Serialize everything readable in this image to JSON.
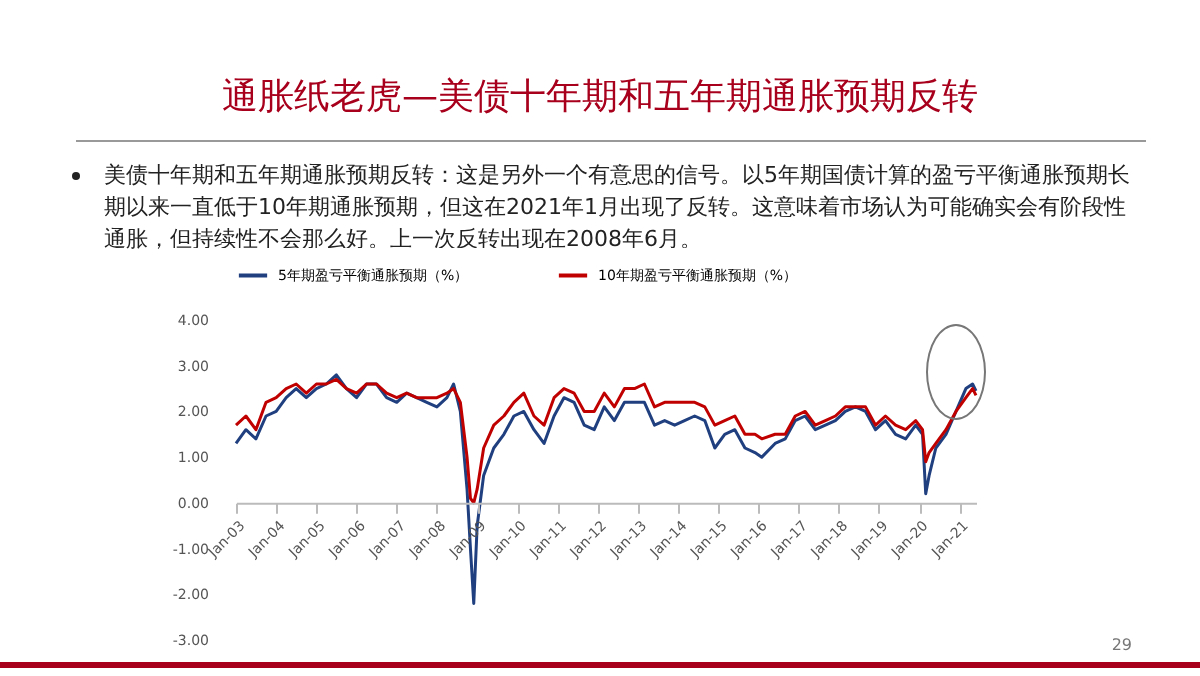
{
  "chart_data": {
    "type": "line",
    "title": "通胀纸老虎—美债十年期和五年期通胀预期反转",
    "subtitle": "美债十年期和五年期通胀预期反转：这是另外一个有意思的信号。以5年期国债计算的盈亏平衡通胀预期长期以来一直低于10年期通胀预期，但这在2021年1月出现了反转。这意味着市场认为可能确实会有阶段性通胀，但持续性不会那么好。上一次反转出现在2008年6月。",
    "annotations": [
      "29"
    ],
    "x": [
      "2003-01",
      "2003-04",
      "2003-07",
      "2003-10",
      "2004-01",
      "2004-04",
      "2004-07",
      "2004-10",
      "2005-01",
      "2005-04",
      "2005-07",
      "2005-10",
      "2006-01",
      "2006-04",
      "2006-07",
      "2006-10",
      "2007-01",
      "2007-04",
      "2007-07",
      "2007-10",
      "2008-01",
      "2008-04",
      "2008-06",
      "2008-08",
      "2008-10",
      "2008-11",
      "2008-12",
      "2009-01",
      "2009-03",
      "2009-06",
      "2009-09",
      "2009-12",
      "2010-03",
      "2010-06",
      "2010-09",
      "2010-12",
      "2011-03",
      "2011-06",
      "2011-09",
      "2011-12",
      "2012-03",
      "2012-06",
      "2012-09",
      "2012-12",
      "2013-03",
      "2013-06",
      "2013-09",
      "2013-12",
      "2014-03",
      "2014-06",
      "2014-09",
      "2014-12",
      "2015-03",
      "2015-06",
      "2015-09",
      "2015-12",
      "2016-02",
      "2016-06",
      "2016-09",
      "2016-12",
      "2017-03",
      "2017-06",
      "2017-09",
      "2017-12",
      "2018-03",
      "2018-06",
      "2018-09",
      "2018-12",
      "2019-03",
      "2019-06",
      "2019-09",
      "2019-12",
      "2020-02",
      "2020-03",
      "2020-04",
      "2020-06",
      "2020-09",
      "2020-12",
      "2021-03",
      "2021-05",
      "2021-06"
    ],
    "series": [
      {
        "name": "5年期盈亏平衡通胀预期（%）",
        "color": "#1f3f7f",
        "values": [
          1.3,
          1.6,
          1.4,
          1.9,
          2.0,
          2.3,
          2.5,
          2.3,
          2.5,
          2.6,
          2.8,
          2.5,
          2.3,
          2.6,
          2.6,
          2.3,
          2.2,
          2.4,
          2.3,
          2.2,
          2.1,
          2.3,
          2.6,
          2.0,
          0.3,
          -1.0,
          -2.2,
          -0.5,
          0.6,
          1.2,
          1.5,
          1.9,
          2.0,
          1.6,
          1.3,
          1.9,
          2.3,
          2.2,
          1.7,
          1.6,
          2.1,
          1.8,
          2.2,
          2.2,
          2.2,
          1.7,
          1.8,
          1.7,
          1.8,
          1.9,
          1.8,
          1.2,
          1.5,
          1.6,
          1.2,
          1.1,
          1.0,
          1.3,
          1.4,
          1.8,
          1.9,
          1.6,
          1.7,
          1.8,
          2.0,
          2.1,
          2.0,
          1.6,
          1.8,
          1.5,
          1.4,
          1.7,
          1.5,
          0.2,
          0.6,
          1.2,
          1.5,
          2.0,
          2.5,
          2.6,
          2.45
        ]
      },
      {
        "name": "10年期盈亏平衡通胀预期（%）",
        "color": "#c00000",
        "values": [
          1.7,
          1.9,
          1.6,
          2.2,
          2.3,
          2.5,
          2.6,
          2.4,
          2.6,
          2.6,
          2.7,
          2.5,
          2.4,
          2.6,
          2.6,
          2.4,
          2.3,
          2.4,
          2.3,
          2.3,
          2.3,
          2.4,
          2.5,
          2.2,
          1.0,
          0.1,
          0.0,
          0.3,
          1.2,
          1.7,
          1.9,
          2.2,
          2.4,
          1.9,
          1.7,
          2.3,
          2.5,
          2.4,
          2.0,
          2.0,
          2.4,
          2.1,
          2.5,
          2.5,
          2.6,
          2.1,
          2.2,
          2.2,
          2.2,
          2.2,
          2.1,
          1.7,
          1.8,
          1.9,
          1.5,
          1.5,
          1.4,
          1.5,
          1.5,
          1.9,
          2.0,
          1.7,
          1.8,
          1.9,
          2.1,
          2.1,
          2.1,
          1.7,
          1.9,
          1.7,
          1.6,
          1.8,
          1.6,
          0.9,
          1.1,
          1.3,
          1.6,
          2.0,
          2.3,
          2.5,
          2.35
        ]
      }
    ],
    "xlim": [
      "2003-01",
      "2021-06"
    ],
    "xticks": [
      {
        "value": "2003-01",
        "label": "Jan-03"
      },
      {
        "value": "2004-01",
        "label": "Jan-04"
      },
      {
        "value": "2005-01",
        "label": "Jan-05"
      },
      {
        "value": "2006-01",
        "label": "Jan-06"
      },
      {
        "value": "2007-01",
        "label": "Jan-07"
      },
      {
        "value": "2008-01",
        "label": "Jan-08"
      },
      {
        "value": "2009-01",
        "label": "Jan-09"
      },
      {
        "value": "2010-01",
        "label": "Jan-10"
      },
      {
        "value": "2011-01",
        "label": "Jan-11"
      },
      {
        "value": "2012-01",
        "label": "Jan-12"
      },
      {
        "value": "2013-01",
        "label": "Jan-13"
      },
      {
        "value": "2014-01",
        "label": "Jan-14"
      },
      {
        "value": "2015-01",
        "label": "Jan-15"
      },
      {
        "value": "2016-01",
        "label": "Jan-16"
      },
      {
        "value": "2017-01",
        "label": "Jan-17"
      },
      {
        "value": "2018-01",
        "label": "Jan-18"
      },
      {
        "value": "2019-01",
        "label": "Jan-19"
      },
      {
        "value": "2020-01",
        "label": "Jan-20"
      },
      {
        "value": "2021-01",
        "label": "Jan-21"
      }
    ],
    "ylim": [
      -3,
      4
    ],
    "yticks": [
      {
        "value": -3,
        "label": "-3.00"
      },
      {
        "value": -2,
        "label": "-2.00"
      },
      {
        "value": -1,
        "label": "-1.00"
      },
      {
        "value": 0,
        "label": "0.00"
      },
      {
        "value": 1,
        "label": "1.00"
      },
      {
        "value": 2,
        "label": "2.00"
      },
      {
        "value": 3,
        "label": "3.00"
      },
      {
        "value": 4,
        "label": "4.00"
      }
    ],
    "grid": false,
    "legend": "top",
    "marker": "none"
  }
}
